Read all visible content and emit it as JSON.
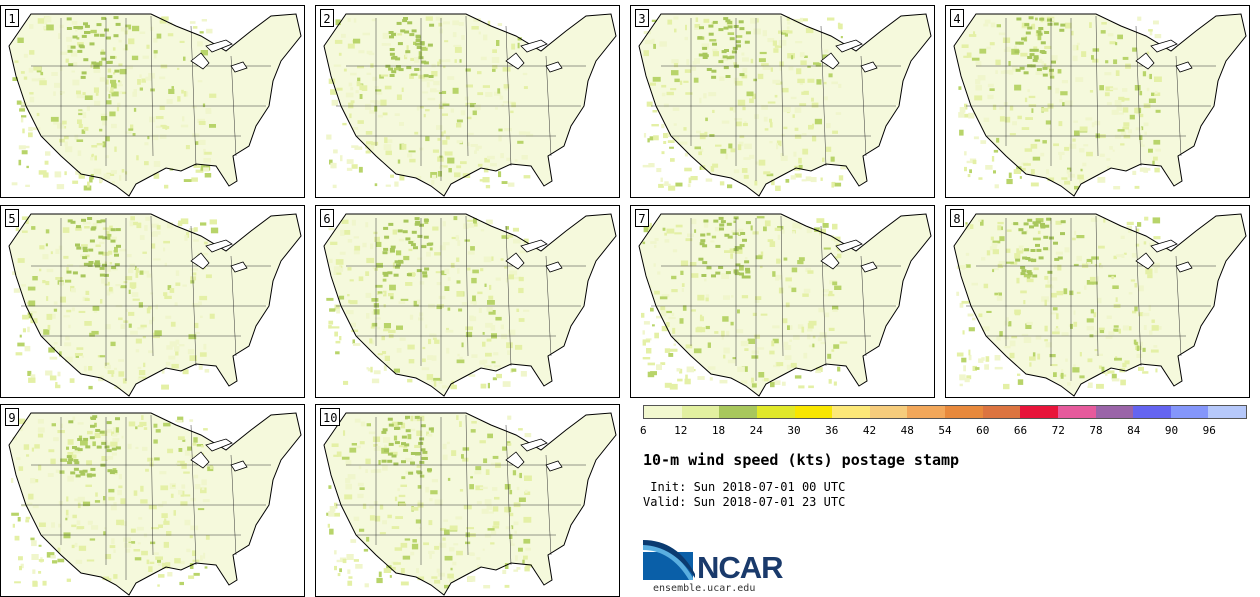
{
  "panels": [
    "1",
    "2",
    "3",
    "4",
    "5",
    "6",
    "7",
    "8",
    "9",
    "10"
  ],
  "colorbar": {
    "colors": [
      "#f2f8cf",
      "#e2f0a0",
      "#a8c75c",
      "#e0e82a",
      "#f8e600",
      "#fce878",
      "#f6cc7c",
      "#f2a75a",
      "#e8893c",
      "#dc7440",
      "#e8143a",
      "#e65a9c",
      "#9a64a8",
      "#6464f0",
      "#8496fa",
      "#b6c8fa"
    ],
    "ticks": [
      "6",
      "12",
      "18",
      "24",
      "30",
      "36",
      "42",
      "48",
      "54",
      "60",
      "66",
      "72",
      "78",
      "84",
      "90",
      "96"
    ]
  },
  "title": "10-m wind speed (kts) postage stamp",
  "init": " Init: Sun 2018-07-01 00 UTC",
  "valid": "Valid: Sun 2018-07-01 23 UTC",
  "logo": {
    "text": "NCAR",
    "url": "ensemble.ucar.edu"
  }
}
